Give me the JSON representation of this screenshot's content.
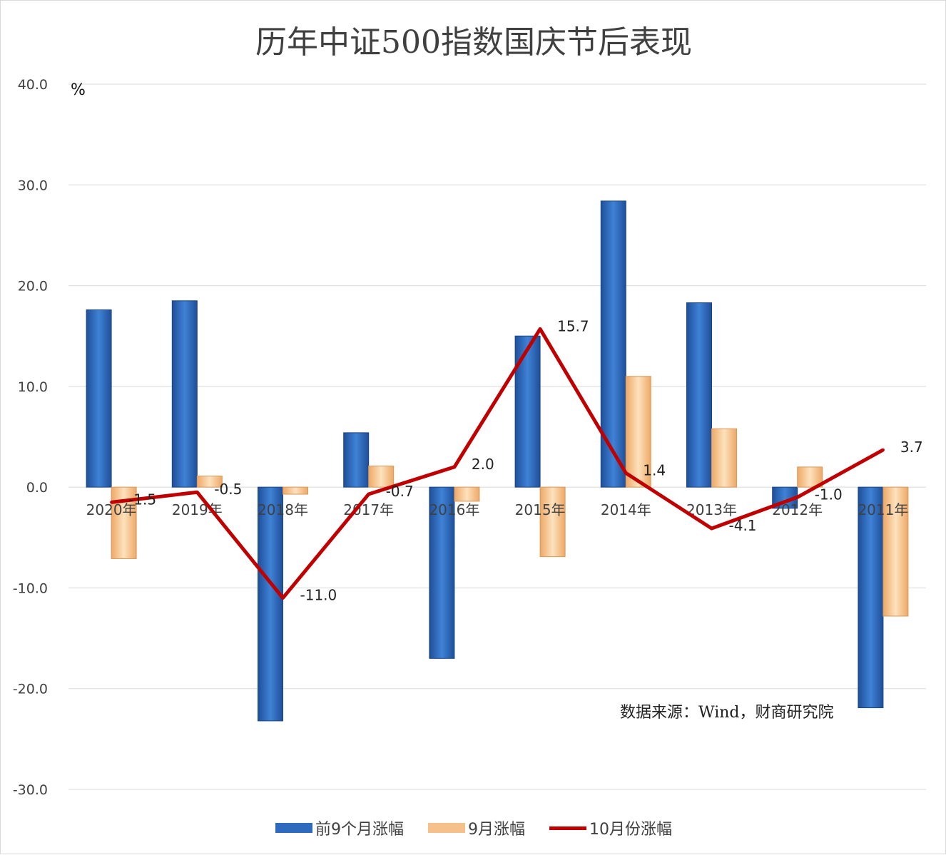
{
  "chart_data": {
    "type": "bar",
    "title": "历年中证500指数国庆节后表现",
    "ylabel": "%",
    "ylim": [
      -30,
      40
    ],
    "yticks": [
      "40.0",
      "30.0",
      "20.0",
      "10.0",
      "0.0",
      "-10.0",
      "-20.0",
      "-30.0"
    ],
    "grid": true,
    "legend_position": "bottom",
    "categories": [
      "2020年",
      "2019年",
      "2018年",
      "2017年",
      "2016年",
      "2015年",
      "2014年",
      "2013年",
      "2012年",
      "2011年"
    ],
    "series": [
      {
        "name": "前9个月涨幅",
        "type": "bar",
        "color": "#2e6bbf",
        "values": [
          17.6,
          18.5,
          -23.2,
          5.4,
          -17.0,
          15.0,
          28.4,
          18.3,
          -2.1,
          -21.9
        ]
      },
      {
        "name": "9月涨幅",
        "type": "bar",
        "color": "#f5c08a",
        "values": [
          -7.1,
          1.1,
          -0.7,
          2.1,
          -1.4,
          -6.9,
          11.0,
          5.8,
          2.0,
          -12.8
        ]
      },
      {
        "name": "10月份涨幅",
        "type": "line",
        "color": "#c00000",
        "values": [
          -1.5,
          -0.5,
          -11.0,
          -0.7,
          2.0,
          15.7,
          1.4,
          -4.1,
          -1.0,
          3.7
        ],
        "labels": [
          "-1.5",
          "-0.5",
          "-11.0",
          "-0.7",
          "2.0",
          "15.7",
          "1.4",
          "-4.1",
          "-1.0",
          "3.7"
        ]
      }
    ],
    "annotation": "数据来源：Wind，财商研究院"
  }
}
